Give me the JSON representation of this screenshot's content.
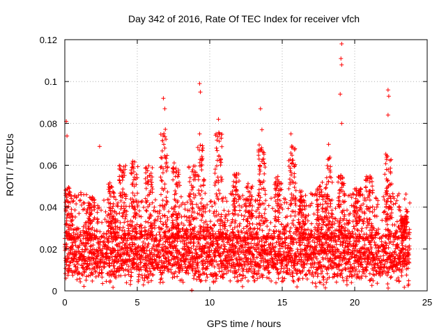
{
  "chart_data": {
    "type": "scatter",
    "title": "Day 342 of 2016, Rate Of TEC Index for receiver vfch",
    "xlabel": "GPS time / hours",
    "ylabel": "ROTI / TECUs",
    "xlim": [
      0,
      25
    ],
    "ylim": [
      0,
      0.12
    ],
    "xticks": [
      0,
      5,
      10,
      15,
      20,
      25
    ],
    "xtick_labels": [
      "0",
      "5",
      "10",
      "15",
      "20",
      "25"
    ],
    "yticks": [
      0,
      0.02,
      0.04,
      0.06,
      0.08,
      0.1,
      0.12
    ],
    "ytick_labels": [
      "0",
      "0.02",
      "0.04",
      "0.06",
      "0.08",
      "0.1",
      "0.12"
    ],
    "grid": true,
    "marker": "+",
    "color": "#ff0000",
    "x_range": [
      0,
      23.8
    ],
    "baseline_band": [
      0.008,
      0.025
    ],
    "notable_points": [
      {
        "x": 0.1,
        "y": 0.081
      },
      {
        "x": 0.15,
        "y": 0.074
      },
      {
        "x": 2.4,
        "y": 0.069
      },
      {
        "x": 6.8,
        "y": 0.092
      },
      {
        "x": 6.9,
        "y": 0.087
      },
      {
        "x": 9.3,
        "y": 0.099
      },
      {
        "x": 9.35,
        "y": 0.095
      },
      {
        "x": 9.3,
        "y": 0.075
      },
      {
        "x": 10.6,
        "y": 0.082
      },
      {
        "x": 10.5,
        "y": 0.072
      },
      {
        "x": 13.5,
        "y": 0.087
      },
      {
        "x": 13.6,
        "y": 0.077
      },
      {
        "x": 15.6,
        "y": 0.075
      },
      {
        "x": 18.2,
        "y": 0.07
      },
      {
        "x": 19.1,
        "y": 0.118
      },
      {
        "x": 19.05,
        "y": 0.111
      },
      {
        "x": 19.1,
        "y": 0.108
      },
      {
        "x": 19.0,
        "y": 0.094
      },
      {
        "x": 19.1,
        "y": 0.08
      },
      {
        "x": 22.3,
        "y": 0.096
      },
      {
        "x": 22.35,
        "y": 0.093
      },
      {
        "x": 22.3,
        "y": 0.084
      }
    ],
    "cluster_peaks": [
      {
        "x": 0.3,
        "y": 0.05
      },
      {
        "x": 1.8,
        "y": 0.045
      },
      {
        "x": 3.2,
        "y": 0.052
      },
      {
        "x": 4.0,
        "y": 0.06
      },
      {
        "x": 4.8,
        "y": 0.062
      },
      {
        "x": 5.8,
        "y": 0.06
      },
      {
        "x": 6.85,
        "y": 0.078
      },
      {
        "x": 7.7,
        "y": 0.062
      },
      {
        "x": 8.8,
        "y": 0.06
      },
      {
        "x": 9.4,
        "y": 0.07
      },
      {
        "x": 10.6,
        "y": 0.078
      },
      {
        "x": 11.8,
        "y": 0.058
      },
      {
        "x": 12.7,
        "y": 0.052
      },
      {
        "x": 13.6,
        "y": 0.072
      },
      {
        "x": 14.7,
        "y": 0.055
      },
      {
        "x": 15.7,
        "y": 0.07
      },
      {
        "x": 16.4,
        "y": 0.048
      },
      {
        "x": 17.6,
        "y": 0.052
      },
      {
        "x": 18.2,
        "y": 0.064
      },
      {
        "x": 19.1,
        "y": 0.056
      },
      {
        "x": 20.2,
        "y": 0.05
      },
      {
        "x": 21.0,
        "y": 0.055
      },
      {
        "x": 22.3,
        "y": 0.066
      },
      {
        "x": 23.4,
        "y": 0.036
      }
    ]
  }
}
